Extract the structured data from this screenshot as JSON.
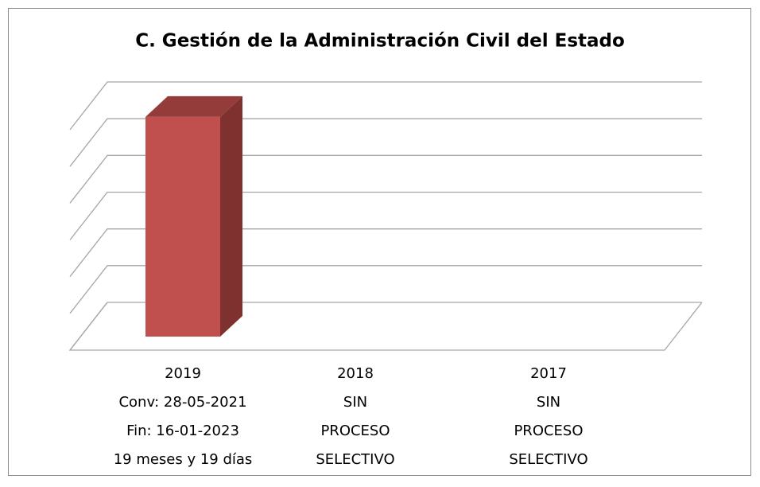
{
  "chart_data": {
    "type": "bar3d",
    "title": "C. Gestión de la Administración Civil del Estado",
    "categories": [
      [
        "2019",
        "Conv: 28-05-2021",
        "Fin: 16-01-2023",
        "19 meses y 19 días"
      ],
      [
        "2018",
        "SIN",
        "PROCESO",
        "SELECTIVO"
      ],
      [
        "2017",
        "SIN",
        "PROCESO",
        "SELECTIVO"
      ]
    ],
    "values": [
      598,
      null,
      null
    ],
    "color": "#c0504d",
    "ylim": [
      0,
      600
    ],
    "yticks": [
      0,
      100,
      200,
      300,
      400,
      500,
      600
    ],
    "grid": true
  }
}
